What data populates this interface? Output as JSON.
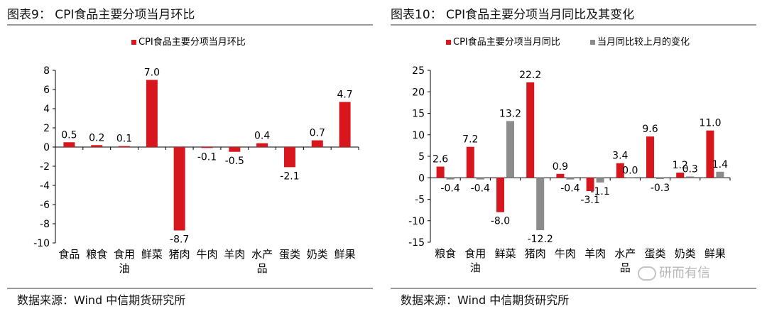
{
  "left": {
    "title": "图表9： CPI食品主要分项当月环比",
    "source": "数据来源：Wind 中信期货研究所"
  },
  "right": {
    "title": "图表10： CPI食品主要分项当月同比及其变化",
    "source": "数据来源：Wind 中信期货研究所"
  },
  "watermark": "研而有信",
  "colors": {
    "red": "#d7161d",
    "gray": "#8c8c8c"
  },
  "chart_data": [
    {
      "type": "bar",
      "categories": [
        [
          "食品"
        ],
        [
          "粮食"
        ],
        [
          "食用",
          "油"
        ],
        [
          "鲜菜"
        ],
        [
          "猪肉"
        ],
        [
          "牛肉"
        ],
        [
          "羊肉"
        ],
        [
          "水产",
          "品"
        ],
        [
          "蛋类"
        ],
        [
          "奶类"
        ],
        [
          "鲜果"
        ]
      ],
      "series": [
        {
          "name": "CPI食品主要分项当月环比",
          "values": [
            0.5,
            0.2,
            0.1,
            7.0,
            -8.7,
            -0.1,
            -0.5,
            0.4,
            -2.1,
            0.7,
            4.7
          ],
          "labels": [
            "0.5",
            "0.2",
            "0.1",
            "7.0",
            "-8.7",
            "-0.1",
            "-0.5",
            "0.4",
            "-2.1",
            "0.7",
            "4.7"
          ],
          "color": "#d7161d"
        }
      ],
      "ylim": [
        -10,
        8
      ],
      "yticks": [
        -10,
        -8,
        -6,
        -4,
        -2,
        0,
        2,
        4,
        6,
        8
      ],
      "legend": "top-center",
      "grid": false
    },
    {
      "type": "bar",
      "categories": [
        [
          "粮食"
        ],
        [
          "食用",
          "油"
        ],
        [
          "鲜菜"
        ],
        [
          "猪肉"
        ],
        [
          "牛肉"
        ],
        [
          "羊肉"
        ],
        [
          "水产",
          "品"
        ],
        [
          "蛋类"
        ],
        [
          "奶类"
        ],
        [
          "鲜果"
        ]
      ],
      "series": [
        {
          "name": "CPI食品主要分项当月同比",
          "values": [
            2.6,
            7.2,
            -8.0,
            22.2,
            0.9,
            -3.1,
            3.4,
            9.6,
            1.2,
            11.0
          ],
          "labels": [
            "2.6",
            "7.2",
            "-8.0",
            "22.2",
            "0.9",
            "-3.1",
            "3.4",
            "9.6",
            "1.2",
            "11.0"
          ],
          "color": "#d7161d"
        },
        {
          "name": "当月同比较上月的变化",
          "values": [
            -0.4,
            -0.4,
            13.2,
            -12.2,
            -0.4,
            -1.1,
            0.0,
            -0.3,
            0.3,
            1.4
          ],
          "labels": [
            "-0.4",
            "-0.4",
            "13.2",
            "-12.2",
            "-0.4",
            "-1.1",
            "0.0",
            "-0.3",
            "0.3",
            "1.4"
          ],
          "color": "#8c8c8c"
        }
      ],
      "ylim": [
        -15,
        25
      ],
      "yticks": [
        -15,
        -10,
        -5,
        0,
        5,
        10,
        15,
        20,
        25
      ],
      "legend": "top-center",
      "grid": false
    }
  ]
}
